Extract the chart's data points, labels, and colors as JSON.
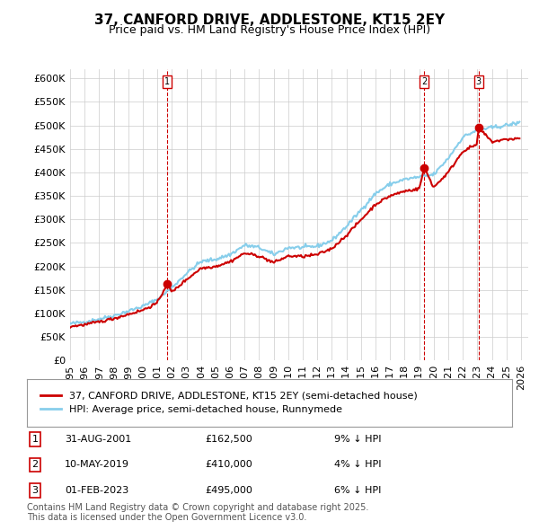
{
  "title": "37, CANFORD DRIVE, ADDLESTONE, KT15 2EY",
  "subtitle": "Price paid vs. HM Land Registry's House Price Index (HPI)",
  "ylabel": "",
  "ylim": [
    0,
    620000
  ],
  "yticks": [
    0,
    50000,
    100000,
    150000,
    200000,
    250000,
    300000,
    350000,
    400000,
    450000,
    500000,
    550000,
    600000
  ],
  "ytick_labels": [
    "£0",
    "£50K",
    "£100K",
    "£150K",
    "£200K",
    "£250K",
    "£300K",
    "£350K",
    "£400K",
    "£450K",
    "£500K",
    "£550K",
    "£600K"
  ],
  "x_start_year": 1995,
  "x_end_year": 2026,
  "hpi_color": "#87CEEB",
  "price_color": "#CC0000",
  "sale_marker_color": "#CC0000",
  "vline_color": "#CC0000",
  "grid_color": "#CCCCCC",
  "background_color": "#FFFFFF",
  "legend_label_price": "37, CANFORD DRIVE, ADDLESTONE, KT15 2EY (semi-detached house)",
  "legend_label_hpi": "HPI: Average price, semi-detached house, Runnymede",
  "sales": [
    {
      "num": 1,
      "date": "31-AUG-2001",
      "year": 2001.67,
      "price": 162500,
      "pct": "9%",
      "dir": "↓"
    },
    {
      "num": 2,
      "date": "10-MAY-2019",
      "year": 2019.36,
      "price": 410000,
      "pct": "4%",
      "dir": "↓"
    },
    {
      "num": 3,
      "date": "01-FEB-2023",
      "year": 2023.08,
      "price": 495000,
      "pct": "6%",
      "dir": "↓"
    }
  ],
  "footnote": "Contains HM Land Registry data © Crown copyright and database right 2025.\nThis data is licensed under the Open Government Licence v3.0.",
  "title_fontsize": 11,
  "subtitle_fontsize": 9,
  "tick_fontsize": 8,
  "legend_fontsize": 8,
  "footnote_fontsize": 7
}
